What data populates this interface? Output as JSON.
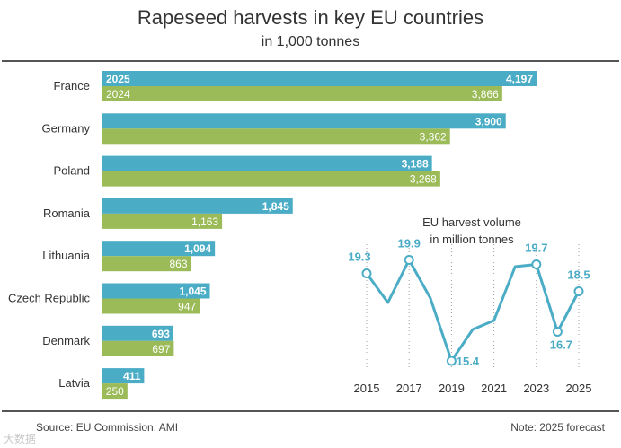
{
  "chart_data": [
    {
      "type": "bar",
      "orientation": "horizontal",
      "title": "Rapeseed harvests in key EU countries",
      "subtitle": "in 1,000 tonnes",
      "categories": [
        "France",
        "Germany",
        "Poland",
        "Romania",
        "Lithuania",
        "Czech Republic",
        "Denmark",
        "Latvia"
      ],
      "series": [
        {
          "name": "2025",
          "color": "#4bacc6",
          "values": [
            4197,
            3900,
            3188,
            1845,
            1094,
            1045,
            693,
            411
          ],
          "labels": [
            "4,197",
            "3,900",
            "3,188",
            "1,845",
            "1,094",
            "1,045",
            "693",
            "411"
          ]
        },
        {
          "name": "2024",
          "color": "#9bbb59",
          "values": [
            3866,
            3362,
            3268,
            1163,
            863,
            947,
            697,
            250
          ],
          "labels": [
            "3,866",
            "3,362",
            "3,268",
            "1,163",
            "863",
            "947",
            "697",
            "250"
          ]
        }
      ],
      "legend": "inline on first category",
      "xlim": [
        0,
        4250
      ]
    },
    {
      "type": "line",
      "title": "EU harvest volume",
      "subtitle": "in million tonnes",
      "x": [
        2015,
        2016,
        2017,
        2018,
        2019,
        2020,
        2021,
        2022,
        2023,
        2024,
        2025
      ],
      "y": [
        19.3,
        18.0,
        19.9,
        18.2,
        15.4,
        16.8,
        17.2,
        19.6,
        19.7,
        16.7,
        18.5
      ],
      "xticks": [
        "2015",
        "2017",
        "2019",
        "2021",
        "2023",
        "2025"
      ],
      "labeled_points": [
        {
          "x": 2015,
          "label": "19.3"
        },
        {
          "x": 2017,
          "label": "19.9"
        },
        {
          "x": 2019,
          "label": "15.4"
        },
        {
          "x": 2023,
          "label": "19.7"
        },
        {
          "x": 2024,
          "label": "16.7"
        },
        {
          "x": 2025,
          "label": "18.5"
        }
      ],
      "ylim": [
        15.0,
        20.6
      ],
      "grid": "dotted vertical lines",
      "color": "#4bacc6"
    }
  ],
  "footer": {
    "source": "Source: EU Commission, AMI",
    "note": "Note: 2025 forecast",
    "watermark": "大数据"
  },
  "colors": {
    "series_2025": "#4bacc6",
    "series_2024": "#9bbb59",
    "text": "#333333",
    "rule": "#555555"
  }
}
